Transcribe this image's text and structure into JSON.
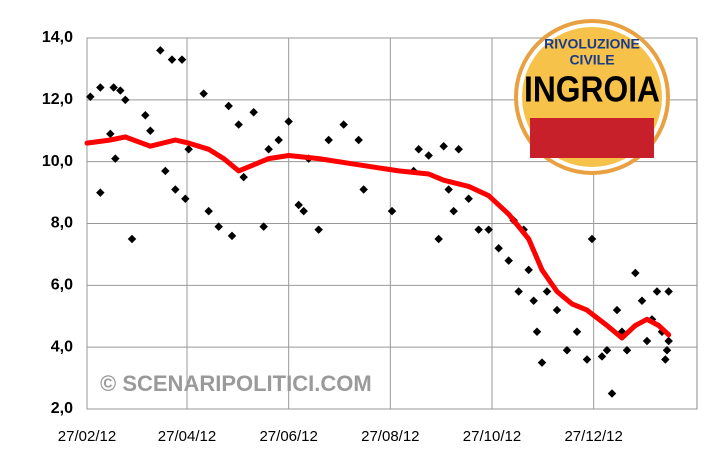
{
  "chart_data": {
    "type": "scatter",
    "xlim": [
      "2012-02-27",
      "2013-02-27"
    ],
    "xticks": [
      {
        "value": "2012-02-27",
        "label": "27/02/12"
      },
      {
        "value": "2012-04-27",
        "label": "27/04/12"
      },
      {
        "value": "2012-06-27",
        "label": "27/06/12"
      },
      {
        "value": "2012-08-27",
        "label": "27/08/12"
      },
      {
        "value": "2012-10-27",
        "label": "27/10/12"
      },
      {
        "value": "2012-12-27",
        "label": "27/12/12"
      }
    ],
    "ylim": [
      2,
      14
    ],
    "yticks": [
      {
        "value": 2,
        "label": "2,0"
      },
      {
        "value": 4,
        "label": "4,0"
      },
      {
        "value": 6,
        "label": "6,0"
      },
      {
        "value": 8,
        "label": "8,0"
      },
      {
        "value": 10,
        "label": "10,0"
      },
      {
        "value": 12,
        "label": "12,0"
      },
      {
        "value": 14,
        "label": "14,0"
      }
    ],
    "grid": true,
    "watermark": "© SCENARIPOLITICI.COM",
    "logo": {
      "line1": "RIVOLUZIONE",
      "line2": "CIVILE",
      "line3": "INGROIA"
    },
    "series": [
      {
        "type": "scatter",
        "color": "#000000",
        "x": [
          "2012-02-29",
          "2012-03-06",
          "2012-03-06",
          "2012-03-14",
          "2012-03-18",
          "2012-03-12",
          "2012-03-15",
          "2012-03-21",
          "2012-03-25",
          "2012-04-02",
          "2012-04-05",
          "2012-04-11",
          "2012-04-18",
          "2012-04-24",
          "2012-04-14",
          "2012-04-20",
          "2012-04-26",
          "2012-04-28",
          "2012-05-07",
          "2012-05-10",
          "2012-05-16",
          "2012-05-24",
          "2012-05-22",
          "2012-05-28",
          "2012-05-31",
          "2012-06-06",
          "2012-06-12",
          "2012-06-15",
          "2012-06-21",
          "2012-06-27",
          "2012-07-03",
          "2012-07-06",
          "2012-07-09",
          "2012-07-15",
          "2012-07-21",
          "2012-07-30",
          "2012-08-08",
          "2012-08-11",
          "2012-08-28",
          "2012-09-10",
          "2012-09-13",
          "2012-09-19",
          "2012-09-25",
          "2012-09-28",
          "2012-10-01",
          "2012-10-04",
          "2012-10-07",
          "2012-10-13",
          "2012-10-19",
          "2012-10-25",
          "2012-10-31",
          "2012-11-06",
          "2012-11-09",
          "2012-11-12",
          "2012-11-15",
          "2012-11-18",
          "2012-11-21",
          "2012-11-23",
          "2012-11-26",
          "2012-11-29",
          "2012-12-05",
          "2012-12-11",
          "2012-12-17",
          "2012-12-23",
          "2012-12-26",
          "2013-01-01",
          "2013-01-04",
          "2013-01-07",
          "2013-01-10",
          "2013-01-13",
          "2013-01-16",
          "2013-01-21",
          "2013-01-25",
          "2013-01-28",
          "2013-01-31",
          "2013-02-03",
          "2013-02-06",
          "2013-02-08",
          "2013-02-09",
          "2013-02-10",
          "2013-02-10"
        ],
        "values": [
          12.1,
          9.0,
          12.4,
          12.4,
          12.3,
          10.9,
          10.1,
          12.0,
          7.5,
          11.5,
          11.0,
          13.6,
          13.3,
          13.3,
          9.7,
          9.1,
          8.8,
          10.4,
          12.2,
          8.4,
          7.9,
          7.6,
          11.8,
          11.2,
          9.5,
          11.6,
          7.9,
          10.4,
          10.7,
          11.3,
          8.6,
          8.4,
          10.1,
          7.8,
          10.7,
          11.2,
          10.7,
          9.1,
          8.4,
          9.7,
          10.4,
          10.2,
          7.5,
          10.5,
          9.1,
          8.4,
          10.4,
          8.8,
          7.8,
          7.8,
          7.2,
          6.8,
          8.1,
          5.8,
          7.8,
          6.5,
          5.5,
          4.5,
          3.5,
          5.8,
          5.2,
          3.9,
          4.5,
          3.6,
          7.5,
          3.7,
          3.9,
          2.5,
          5.2,
          4.5,
          3.9,
          6.4,
          5.5,
          4.2,
          4.9,
          5.8,
          4.5,
          3.6,
          3.9,
          4.2,
          5.8
        ]
      },
      {
        "type": "line",
        "color": "#ff0000",
        "x": [
          "2012-02-27",
          "2012-03-12",
          "2012-03-21",
          "2012-04-05",
          "2012-04-20",
          "2012-04-28",
          "2012-05-10",
          "2012-05-19",
          "2012-05-28",
          "2012-06-06",
          "2012-06-15",
          "2012-06-27",
          "2012-07-15",
          "2012-08-08",
          "2012-09-01",
          "2012-09-19",
          "2012-09-28",
          "2012-10-13",
          "2012-10-25",
          "2012-11-06",
          "2012-11-18",
          "2012-11-26",
          "2012-12-05",
          "2012-12-14",
          "2012-12-23",
          "2013-01-04",
          "2013-01-13",
          "2013-01-21",
          "2013-01-28",
          "2013-02-04",
          "2013-02-10"
        ],
        "values": [
          10.6,
          10.7,
          10.8,
          10.5,
          10.7,
          10.6,
          10.4,
          10.1,
          9.7,
          9.9,
          10.1,
          10.2,
          10.1,
          9.9,
          9.7,
          9.6,
          9.4,
          9.2,
          8.9,
          8.3,
          7.5,
          6.5,
          5.8,
          5.4,
          5.2,
          4.7,
          4.3,
          4.7,
          4.9,
          4.7,
          4.4
        ]
      }
    ]
  }
}
